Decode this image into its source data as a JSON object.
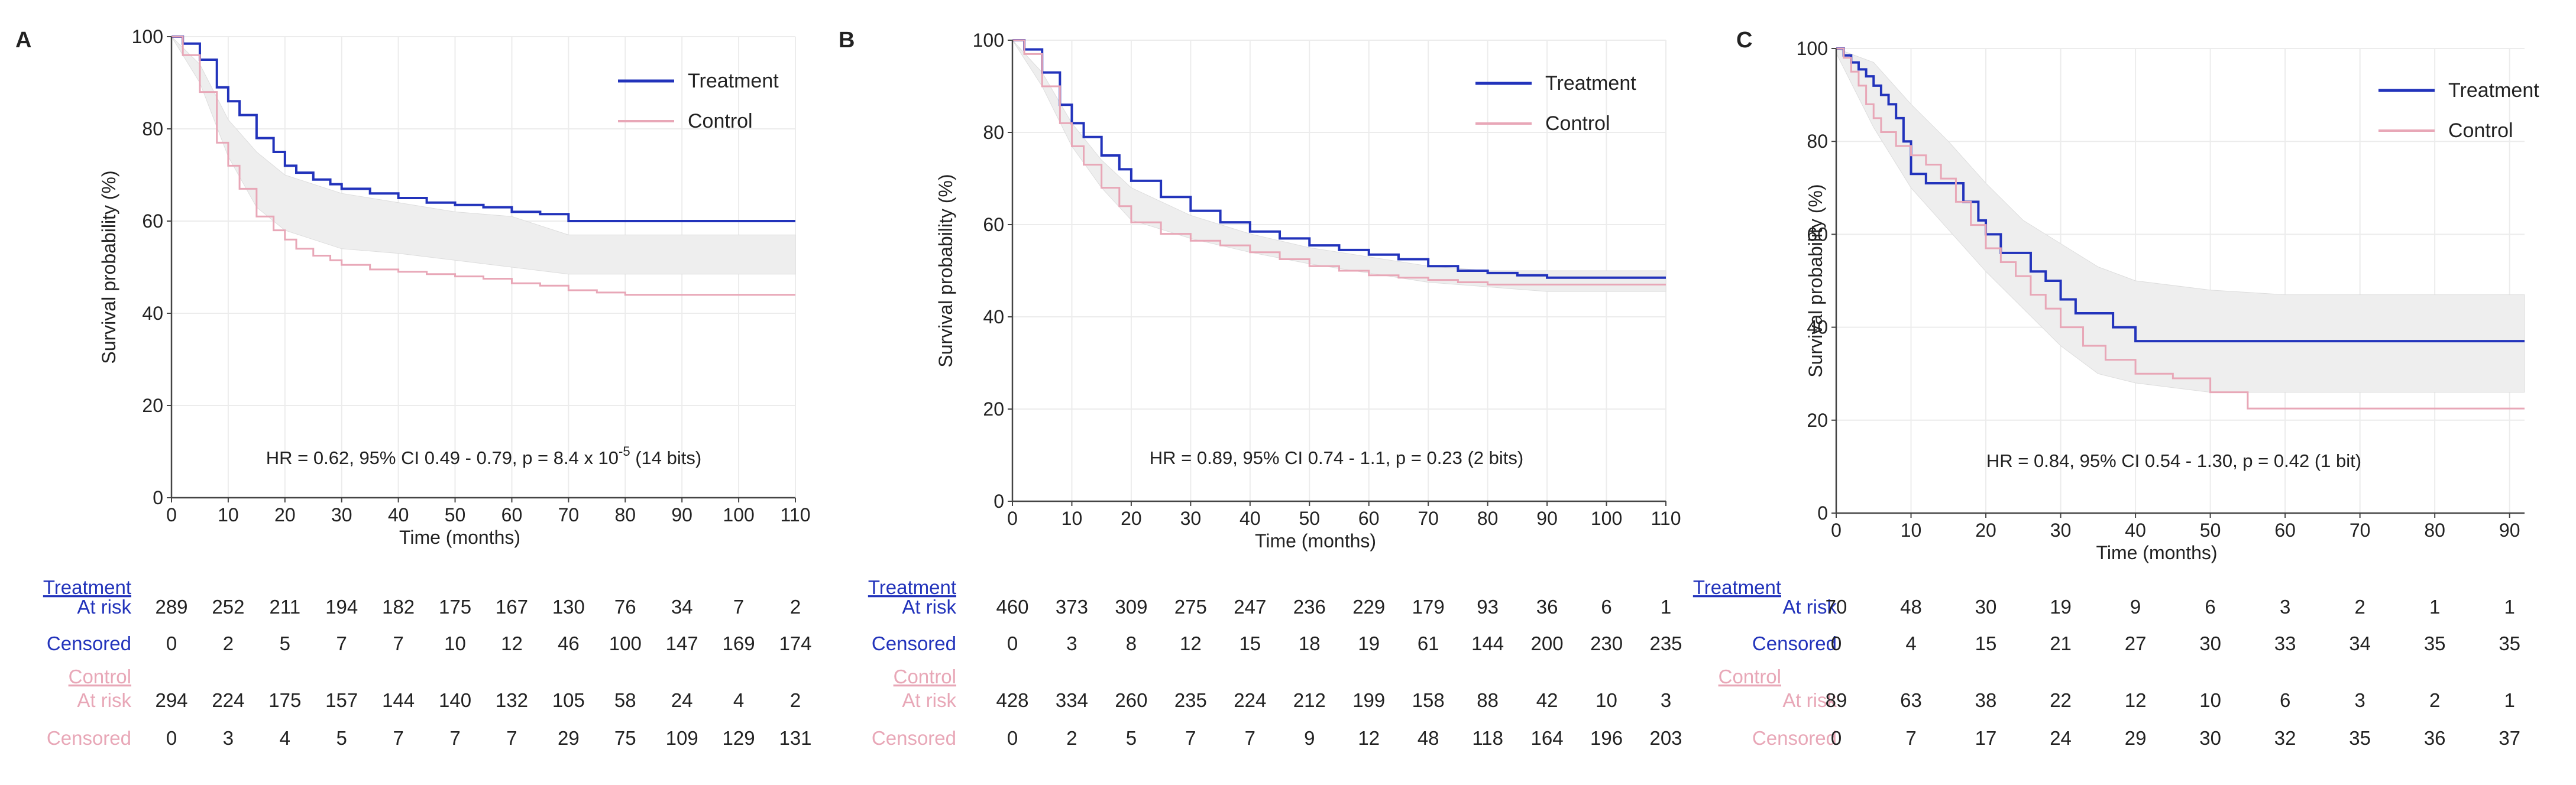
{
  "colors": {
    "treatment": "#2233bb",
    "control": "#e8a7b7",
    "ci_band": "#eeeeee",
    "grid": "#ececec",
    "axis": "#444444",
    "text": "#222222"
  },
  "chart_data": [
    {
      "panel_label": "A",
      "type": "line",
      "xlabel": "Time (months)",
      "ylabel": "Survival probability (%)",
      "xlim": [
        0,
        110
      ],
      "ylim": [
        0,
        100
      ],
      "xticks": [
        0,
        10,
        20,
        30,
        40,
        50,
        60,
        70,
        80,
        90,
        100,
        110
      ],
      "yticks": [
        0,
        20,
        40,
        60,
        80,
        100
      ],
      "legend": {
        "placement": "top-right",
        "entries": [
          "Treatment",
          "Control"
        ]
      },
      "annotation": {
        "prefix": "HR = 0.62, 95% CI 0.49 - 0.79, p = 8.4 x 10",
        "sup": "-5",
        "suffix": " (14 bits)"
      },
      "series": [
        {
          "name": "Treatment",
          "x": [
            0,
            2,
            5,
            8,
            10,
            12,
            15,
            18,
            20,
            22,
            25,
            28,
            30,
            35,
            40,
            45,
            50,
            55,
            60,
            65,
            70,
            75,
            80,
            90,
            100,
            110
          ],
          "y": [
            100,
            98.5,
            95,
            89,
            86,
            83,
            78,
            75,
            72,
            70.5,
            69,
            68,
            67,
            66,
            65,
            64,
            63.5,
            63,
            62,
            61.5,
            60,
            60,
            60,
            60,
            60,
            60
          ]
        },
        {
          "name": "Control",
          "x": [
            0,
            2,
            5,
            8,
            10,
            12,
            15,
            18,
            20,
            22,
            25,
            28,
            30,
            35,
            40,
            45,
            50,
            55,
            60,
            65,
            70,
            75,
            80,
            90,
            100,
            110
          ],
          "y": [
            100,
            96,
            88,
            77,
            72,
            67,
            61,
            58,
            56,
            54,
            52.5,
            51.5,
            50.5,
            49.5,
            49,
            48.5,
            48,
            47.5,
            46.5,
            46,
            45,
            44.5,
            44,
            44,
            44,
            44
          ]
        }
      ],
      "ci_band": {
        "x": [
          0,
          5,
          10,
          15,
          20,
          25,
          30,
          40,
          50,
          60,
          70,
          80,
          90,
          100,
          110
        ],
        "lower": [
          100,
          90,
          74,
          63,
          58,
          56,
          54,
          53,
          51.5,
          50,
          48.5,
          48.5,
          48.5,
          48.5,
          48.5
        ],
        "upper": [
          100,
          94,
          82,
          75,
          70,
          68,
          66,
          64,
          62,
          61,
          57,
          57,
          57,
          57,
          57
        ]
      },
      "risk_table": {
        "time_points": [
          0,
          10,
          20,
          30,
          40,
          50,
          60,
          70,
          80,
          90,
          100,
          110
        ],
        "treatment_title": "Treatment",
        "control_title": "Control",
        "at_risk_label": "At risk",
        "censored_label": "Censored",
        "treatment_at_risk": [
          289,
          252,
          211,
          194,
          182,
          175,
          167,
          130,
          76,
          34,
          7,
          2
        ],
        "treatment_censored": [
          0,
          2,
          5,
          7,
          7,
          10,
          12,
          46,
          100,
          147,
          169,
          174
        ],
        "control_at_risk": [
          294,
          224,
          175,
          157,
          144,
          140,
          132,
          105,
          58,
          24,
          4,
          2
        ],
        "control_censored": [
          0,
          3,
          4,
          5,
          7,
          7,
          7,
          29,
          75,
          109,
          129,
          131
        ]
      }
    },
    {
      "panel_label": "B",
      "type": "line",
      "xlabel": "Time (months)",
      "ylabel": "Survival probability (%)",
      "xlim": [
        0,
        110
      ],
      "ylim": [
        0,
        100
      ],
      "xticks": [
        0,
        10,
        20,
        30,
        40,
        50,
        60,
        70,
        80,
        90,
        100,
        110
      ],
      "yticks": [
        0,
        20,
        40,
        60,
        80,
        100
      ],
      "legend": {
        "placement": "top-right",
        "entries": [
          "Treatment",
          "Control"
        ]
      },
      "annotation": {
        "prefix": "HR = 0.89, 95% CI 0.74 - 1.1, p = 0.23 (2 bits)",
        "sup": "",
        "suffix": ""
      },
      "series": [
        {
          "name": "Treatment",
          "x": [
            0,
            2,
            5,
            8,
            10,
            12,
            15,
            18,
            20,
            25,
            30,
            35,
            40,
            45,
            50,
            55,
            60,
            65,
            70,
            75,
            80,
            85,
            90,
            100,
            110
          ],
          "y": [
            100,
            98,
            93,
            86,
            82,
            79,
            75,
            72,
            69.5,
            66,
            63,
            60.5,
            58.5,
            57,
            55.5,
            54.5,
            53.5,
            52.5,
            51,
            50,
            49.5,
            49,
            48.5,
            48.5,
            48.5
          ]
        },
        {
          "name": "Control",
          "x": [
            0,
            2,
            5,
            8,
            10,
            12,
            15,
            18,
            20,
            25,
            30,
            35,
            40,
            45,
            50,
            55,
            60,
            65,
            70,
            75,
            80,
            85,
            90,
            100,
            110
          ],
          "y": [
            100,
            97,
            90,
            82,
            77,
            73,
            68,
            64,
            60.5,
            58,
            56.5,
            55.5,
            54,
            52.5,
            51,
            50,
            49,
            48.5,
            48,
            47.5,
            47,
            47,
            47,
            47,
            47
          ]
        }
      ],
      "ci_band": {
        "x": [
          0,
          5,
          10,
          15,
          20,
          30,
          40,
          50,
          60,
          70,
          80,
          90,
          100,
          110
        ],
        "lower": [
          100,
          90,
          77,
          68,
          61,
          57,
          54,
          51.5,
          49.5,
          47.5,
          46.5,
          45.5,
          45.5,
          45.5
        ],
        "upper": [
          100,
          93,
          82,
          74,
          68,
          62,
          58,
          55,
          53,
          51,
          50,
          50,
          50,
          50
        ]
      },
      "risk_table": {
        "time_points": [
          0,
          10,
          20,
          30,
          40,
          50,
          60,
          70,
          80,
          90,
          100,
          110
        ],
        "treatment_title": "Treatment",
        "control_title": "Control",
        "at_risk_label": "At risk",
        "censored_label": "Censored",
        "treatment_at_risk": [
          460,
          373,
          309,
          275,
          247,
          236,
          229,
          179,
          93,
          36,
          6,
          1
        ],
        "treatment_censored": [
          0,
          3,
          8,
          12,
          15,
          18,
          19,
          61,
          144,
          200,
          230,
          235
        ],
        "control_at_risk": [
          428,
          334,
          260,
          235,
          224,
          212,
          199,
          158,
          88,
          42,
          10,
          3
        ],
        "control_censored": [
          0,
          2,
          5,
          7,
          7,
          9,
          12,
          48,
          118,
          164,
          196,
          203
        ]
      }
    },
    {
      "panel_label": "C",
      "type": "line",
      "xlabel": "Time (months)",
      "ylabel": "Survival probability (%)",
      "xlim": [
        0,
        92
      ],
      "ylim": [
        0,
        100
      ],
      "xticks": [
        0,
        10,
        20,
        30,
        40,
        50,
        60,
        70,
        80,
        90
      ],
      "yticks": [
        0,
        20,
        40,
        60,
        80,
        100
      ],
      "legend": {
        "placement": "top-right",
        "entries": [
          "Treatment",
          "Control"
        ]
      },
      "annotation": {
        "prefix": "HR = 0.84, 95% CI 0.54 - 1.30, p = 0.42 (1 bit)",
        "sup": "",
        "suffix": ""
      },
      "series": [
        {
          "name": "Treatment",
          "x": [
            0,
            1,
            2,
            3,
            4,
            5,
            6,
            7,
            8,
            9,
            10,
            12,
            15,
            17,
            19,
            20,
            22,
            24,
            26,
            28,
            30,
            32,
            35,
            37,
            40,
            92
          ],
          "y": [
            100,
            98.5,
            97,
            95.5,
            94,
            92,
            90,
            88,
            85,
            80,
            73,
            71,
            71,
            67,
            63,
            60,
            56,
            56,
            52,
            50,
            46,
            43,
            43,
            40,
            37,
            37
          ]
        },
        {
          "name": "Control",
          "x": [
            0,
            1,
            2,
            3,
            4,
            5,
            6,
            8,
            10,
            12,
            14,
            16,
            18,
            20,
            22,
            24,
            26,
            28,
            30,
            33,
            36,
            40,
            45,
            50,
            55,
            92
          ],
          "y": [
            100,
            98,
            95,
            92,
            88,
            85,
            82,
            79,
            77,
            75,
            72,
            67,
            62,
            57,
            54,
            51,
            47,
            44,
            40,
            36,
            33,
            30,
            29,
            26,
            22.5,
            22.5
          ]
        }
      ],
      "ci_band": {
        "x": [
          0,
          5,
          10,
          15,
          20,
          25,
          30,
          35,
          40,
          50,
          60,
          70,
          80,
          92
        ],
        "lower": [
          99,
          83,
          70,
          61,
          52,
          44,
          36,
          30,
          28,
          26,
          26,
          26,
          26,
          26
        ],
        "upper": [
          100,
          97,
          88,
          80,
          71,
          63,
          58,
          53,
          50,
          48,
          47,
          47,
          47,
          47
        ]
      },
      "risk_table": {
        "time_points": [
          0,
          10,
          20,
          30,
          40,
          50,
          60,
          70,
          80,
          90
        ],
        "treatment_title": "Treatment",
        "control_title": "Control",
        "at_risk_label": "At risk",
        "censored_label": "Censored",
        "treatment_at_risk": [
          70,
          48,
          30,
          19,
          9,
          6,
          3,
          2,
          1,
          1
        ],
        "treatment_censored": [
          0,
          4,
          15,
          21,
          27,
          30,
          33,
          34,
          35,
          35
        ],
        "control_at_risk": [
          89,
          63,
          38,
          22,
          12,
          10,
          6,
          3,
          2,
          1
        ],
        "control_censored": [
          0,
          7,
          17,
          24,
          29,
          30,
          32,
          35,
          36,
          37
        ]
      }
    }
  ]
}
